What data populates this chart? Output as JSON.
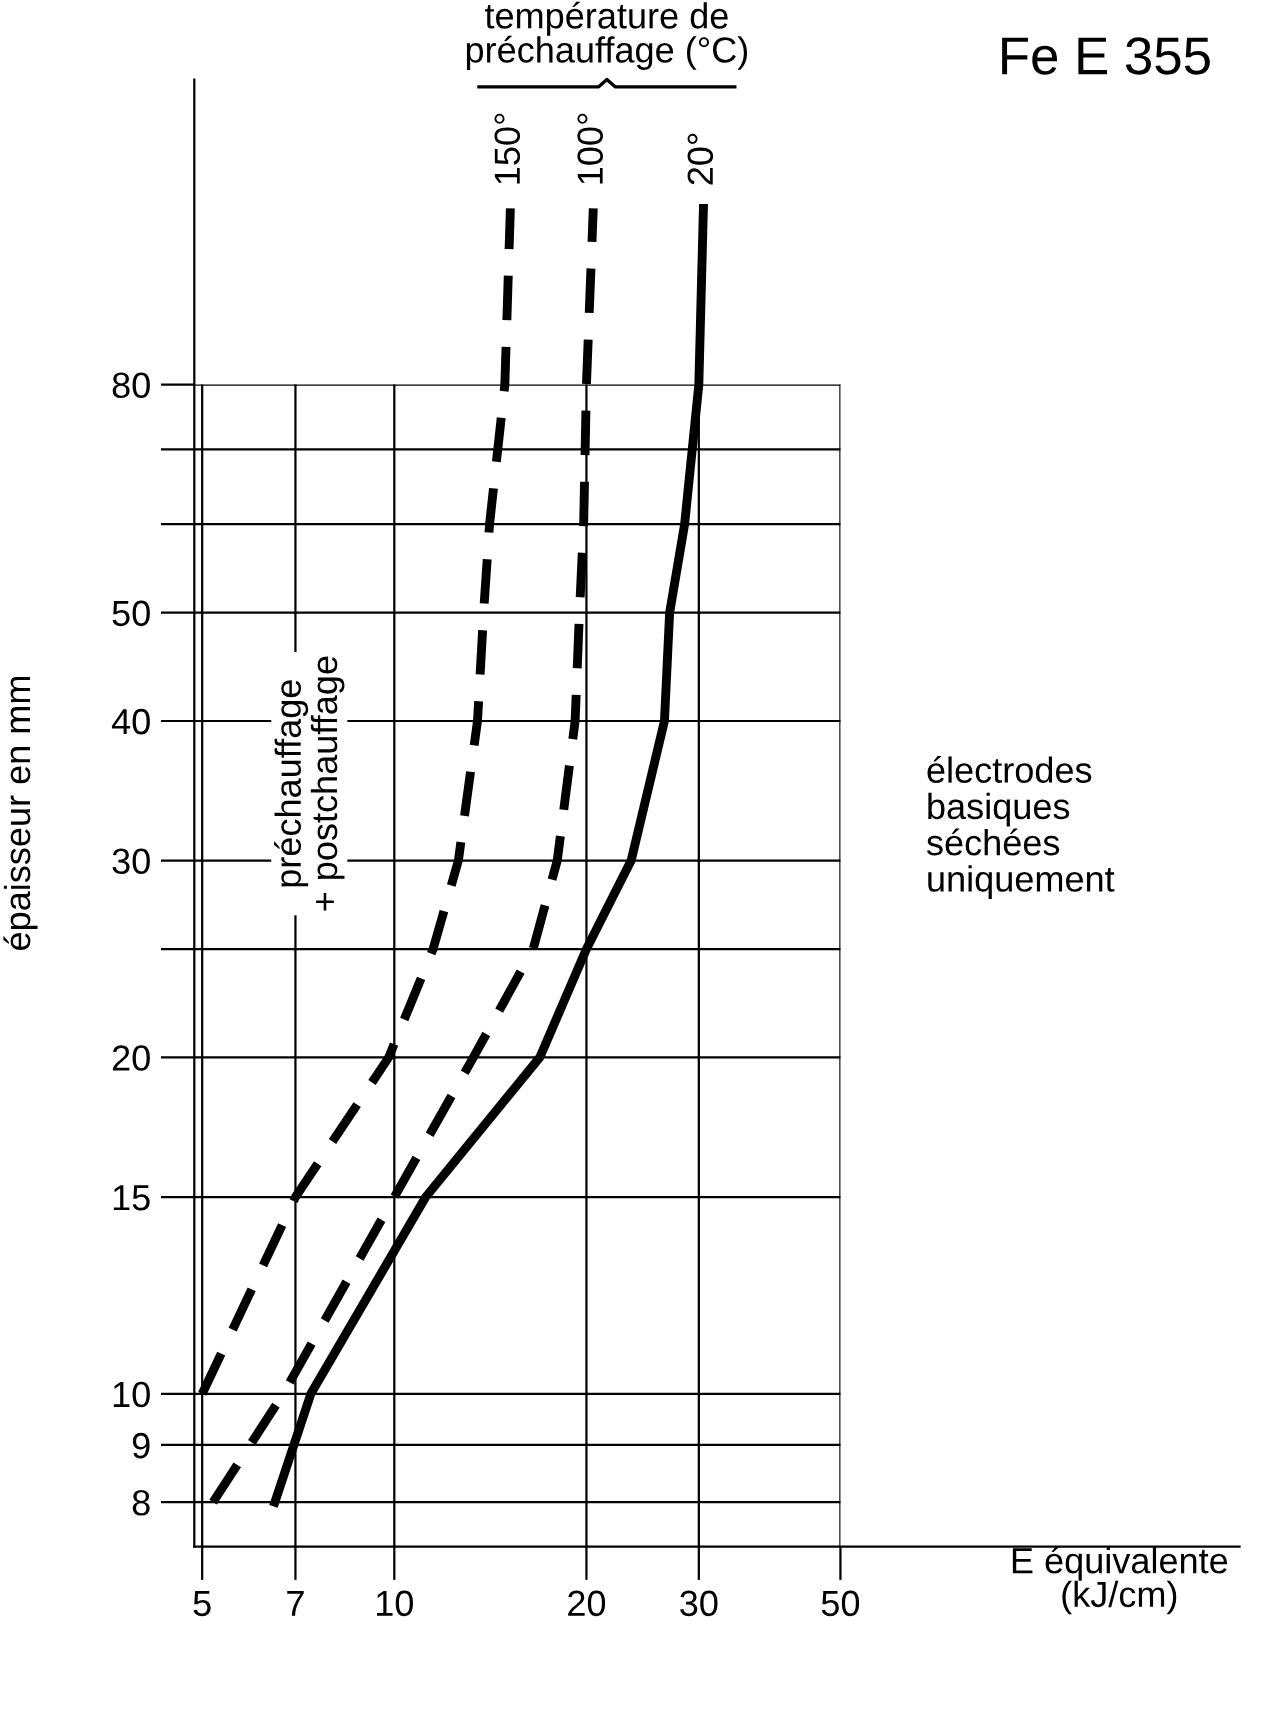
{
  "chart_data": {
    "type": "line",
    "title": "Fe E 355",
    "legend_title": "température de préchauffage (°C)",
    "xlabel": "E équivalente\n(kJ/cm)",
    "ylabel": "épaisseur en mm",
    "log": "xy",
    "xlim": [
      4.86,
      211
    ],
    "ylim": [
      7.3,
      150
    ],
    "xticks": [
      5,
      7,
      10,
      20,
      30,
      50
    ],
    "yticks": [
      8,
      9,
      10,
      15,
      20,
      {
        "value": 25,
        "label": null
      },
      30,
      40,
      50,
      {
        "value": 60,
        "label": null
      },
      {
        "value": 70,
        "label": null
      },
      80
    ],
    "grid": true,
    "legend": false,
    "series": [
      {
        "name": "150°",
        "color": "#000000",
        "line_style": "dashed",
        "x": [
          5,
          7,
          9.8,
          11.5,
          12.6,
          13.5,
          13.8,
          14.1,
          14.9,
          15.2
        ],
        "values": [
          10,
          15,
          20,
          25,
          30,
          40,
          50,
          60,
          80,
          115
        ]
      },
      {
        "name": "100°",
        "color": "#000000",
        "line_style": "dashed",
        "x": [
          5.2,
          6.7,
          10,
          13.3,
          16.5,
          18,
          19.2,
          19.5,
          19.8,
          20,
          20.5
        ],
        "values": [
          8,
          10,
          15,
          20,
          25,
          30,
          40,
          50,
          60,
          80,
          115
        ]
      },
      {
        "name": "20°",
        "color": "#000000",
        "line_style": "solid",
        "x": [
          6.5,
          7.4,
          11.2,
          16.9,
          20,
          23.5,
          26.5,
          27,
          28.5,
          30,
          30.5
        ],
        "values": [
          8,
          10,
          15,
          20,
          25,
          30,
          40,
          50,
          60,
          80,
          115
        ]
      }
    ],
    "annotations": [
      "préchauffage\n+ postchauffage",
      "électrodes\nbasiques\nséchées\nuniquement"
    ]
  }
}
